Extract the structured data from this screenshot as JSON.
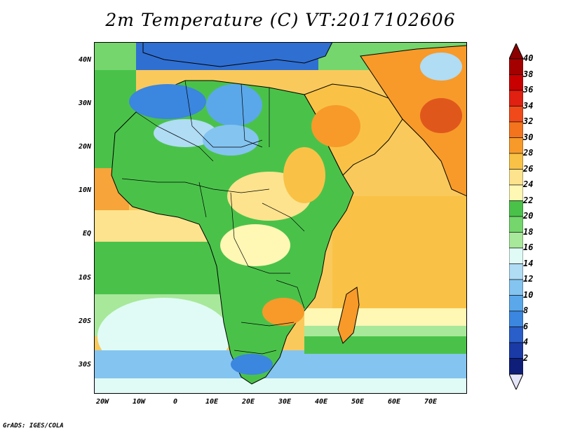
{
  "title": "2m Temperature (C) VT:2017102606",
  "footer": "GrADS: IGES/COLA",
  "map": {
    "lat_labels": [
      "40N",
      "30N",
      "20N",
      "10N",
      "EQ",
      "10S",
      "20S",
      "30S"
    ],
    "lon_labels": [
      "20W",
      "10W",
      "0",
      "10E",
      "20E",
      "30E",
      "40E",
      "50E",
      "60E",
      "70E"
    ],
    "lon_range": [
      -22,
      80
    ],
    "lat_range": [
      -37,
      45
    ]
  },
  "colorbar": {
    "labels": [
      "40",
      "38",
      "36",
      "34",
      "32",
      "30",
      "28",
      "26",
      "24",
      "22",
      "20",
      "18",
      "16",
      "14",
      "12",
      "10",
      "8",
      "6",
      "4",
      "2"
    ],
    "colors": [
      "#a50000",
      "#c80000",
      "#e02010",
      "#f04a1a",
      "#f4741e",
      "#f79a2a",
      "#f9c246",
      "#fde38e",
      "#fff7b4",
      "#4ac24a",
      "#74d66c",
      "#a8e89a",
      "#e0fbf5",
      "#b0dcf4",
      "#84c4f0",
      "#5aa8ea",
      "#3b86de",
      "#2a5ec8",
      "#1a3aa6",
      "#0f1e78"
    ],
    "top_arrow_color": "#8b0000",
    "bottom_arrow_color": "#e6e6fa"
  }
}
